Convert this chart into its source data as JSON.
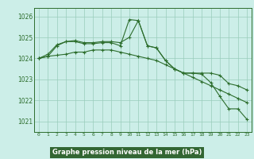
{
  "x": [
    0,
    1,
    2,
    3,
    4,
    5,
    6,
    7,
    8,
    9,
    10,
    11,
    12,
    13,
    14,
    15,
    16,
    17,
    18,
    19,
    20,
    21,
    22,
    23
  ],
  "line1": [
    1024.0,
    1024.1,
    1024.6,
    1024.8,
    1024.8,
    1024.7,
    1024.7,
    1024.75,
    1024.75,
    1024.6,
    1025.85,
    1025.8,
    1024.6,
    1024.5,
    1023.9,
    1023.5,
    1023.3,
    1023.3,
    1023.25,
    1022.85,
    1022.2,
    1021.6,
    1021.6,
    1021.1
  ],
  "line2": [
    1024.0,
    1024.2,
    1024.65,
    1024.8,
    1024.85,
    1024.75,
    1024.75,
    1024.8,
    1024.8,
    1024.75,
    1025.0,
    1025.8,
    1024.6,
    1024.5,
    1023.9,
    1023.5,
    1023.3,
    1023.3,
    1023.3,
    1023.3,
    1023.2,
    1022.8,
    1022.7,
    1022.5
  ],
  "line3": [
    1024.0,
    1024.1,
    1024.15,
    1024.2,
    1024.3,
    1024.3,
    1024.4,
    1024.4,
    1024.4,
    1024.3,
    1024.2,
    1024.1,
    1024.0,
    1023.9,
    1023.7,
    1023.5,
    1023.3,
    1023.1,
    1022.9,
    1022.7,
    1022.5,
    1022.3,
    1022.1,
    1021.9
  ],
  "bg_color": "#cceee8",
  "line_color": "#2d6e2d",
  "grid_color": "#99ccbb",
  "xlabel": "Graphe pression niveau de la mer (hPa)",
  "ylabel_ticks": [
    1021,
    1022,
    1023,
    1024,
    1025,
    1026
  ],
  "xlim": [
    -0.5,
    23.5
  ],
  "ylim": [
    1020.5,
    1026.4
  ],
  "xlabel_bg": "#336633",
  "marker": "+",
  "markersize": 3,
  "linewidth": 0.8
}
